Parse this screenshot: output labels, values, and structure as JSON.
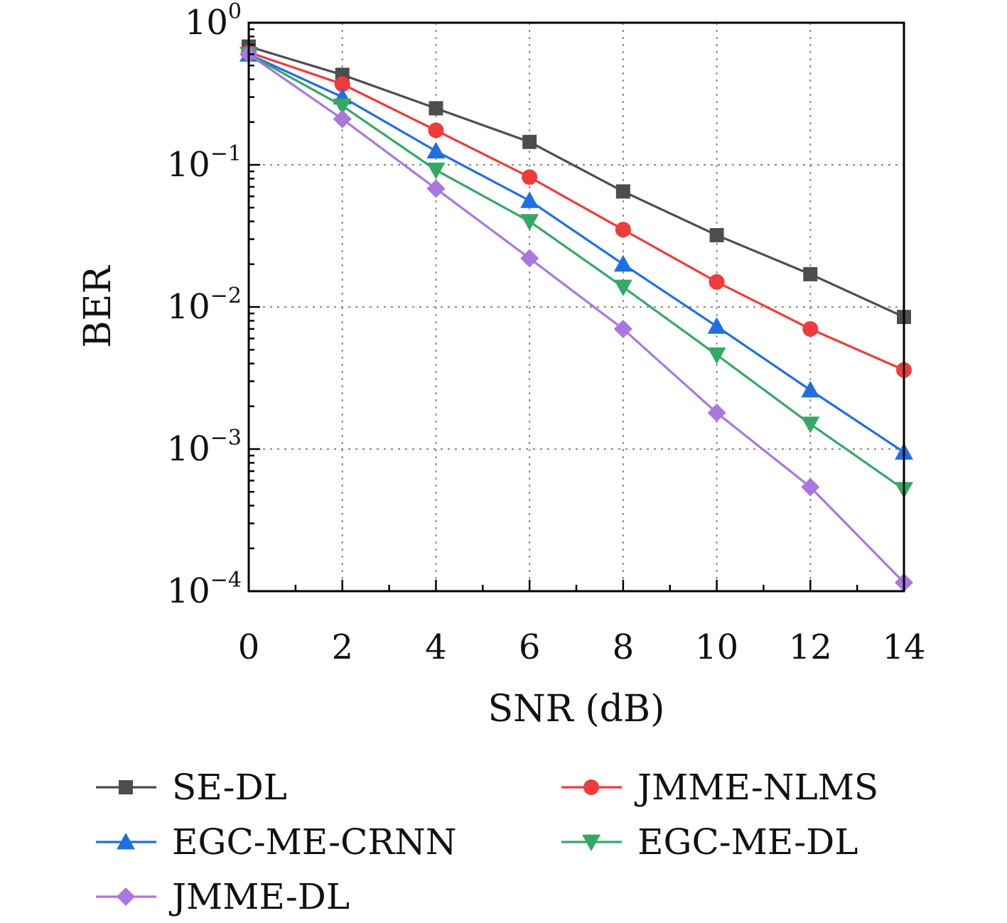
{
  "chart_data": {
    "type": "line",
    "title": "",
    "xlabel": "SNR (dB)",
    "ylabel": "BER",
    "x": [
      0,
      2,
      4,
      6,
      8,
      10,
      12,
      14
    ],
    "xlim": [
      0,
      14
    ],
    "ylim": [
      0.0001,
      1
    ],
    "yscale": "log",
    "xticks": [
      "0",
      "2",
      "4",
      "6",
      "8",
      "10",
      "12",
      "14"
    ],
    "yticks": [
      {
        "base": "10",
        "exp": "0"
      },
      {
        "base": "10",
        "exp": "−1"
      },
      {
        "base": "10",
        "exp": "−2"
      },
      {
        "base": "10",
        "exp": "−3"
      },
      {
        "base": "10",
        "exp": "−4"
      }
    ],
    "grid": true,
    "legend_position": "bottom",
    "series": [
      {
        "name": "SE-DL",
        "color": "#4d4d4d",
        "marker": "square",
        "values": [
          0.68,
          0.43,
          0.25,
          0.145,
          0.065,
          0.032,
          0.017,
          0.0085
        ]
      },
      {
        "name": "JMME-NLMS",
        "color": "#ee3b3b",
        "marker": "circle",
        "values": [
          0.62,
          0.37,
          0.175,
          0.082,
          0.035,
          0.015,
          0.007,
          0.0036
        ]
      },
      {
        "name": "EGC-ME-CRNN",
        "color": "#1f6fe0",
        "marker": "triangle-up",
        "values": [
          0.6,
          0.3,
          0.125,
          0.056,
          0.02,
          0.0073,
          0.0026,
          0.00095
        ]
      },
      {
        "name": "EGC-ME-DL",
        "color": "#35a865",
        "marker": "triangle-down",
        "values": [
          0.6,
          0.26,
          0.092,
          0.04,
          0.0138,
          0.0046,
          0.0015,
          0.00052
        ]
      },
      {
        "name": "JMME-DL",
        "color": "#a878dc",
        "marker": "diamond",
        "values": [
          0.6,
          0.21,
          0.068,
          0.022,
          0.007,
          0.0018,
          0.00054,
          0.000115
        ]
      }
    ]
  }
}
